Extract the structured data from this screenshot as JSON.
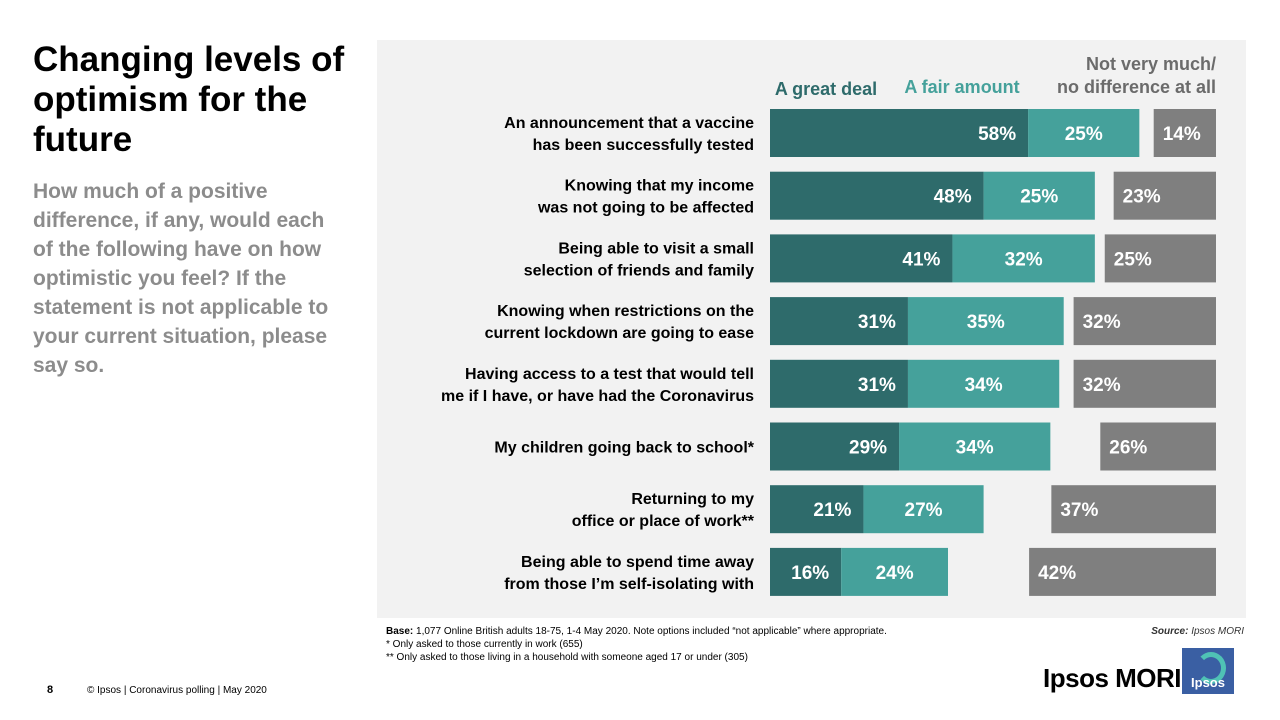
{
  "slide": {
    "title": "Changing levels of optimism for the future",
    "question": "How much of a positive difference, if any, would each of the following have on how optimistic you feel? If the statement is not applicable to your current situation, please say so.",
    "base_label": "Base:",
    "base_text": "1,077 Online British adults 18-75, 1-4 May 2020. Note options included “not applicable” where appropriate.",
    "note1": "* Only asked to those currently in work (655)",
    "note2": "** Only asked to those living in a household with someone aged 17 or under (305)",
    "source_label": "Source:",
    "source_text": "Ipsos MORI",
    "page_number": "8",
    "footer": "© Ipsos | Coronavirus polling | May 2020",
    "logo_text": "Ipsos MORI",
    "logo_badge": "Ipsos"
  },
  "chart_data": {
    "type": "bar",
    "orientation": "horizontal",
    "stacked": true,
    "value_suffix": "%",
    "categories": [
      [
        "An announcement that a vaccine",
        "has been successfully tested"
      ],
      [
        "Knowing that my income",
        "was not going to be affected"
      ],
      [
        "Being able to visit a small",
        "selection of friends and family"
      ],
      [
        "Knowing when restrictions on the",
        "current lockdown are going to ease"
      ],
      [
        "Having access to a test that would tell",
        "me if I have, or have had the Coronavirus"
      ],
      [
        "My children going back to school*"
      ],
      [
        "Returning to my",
        "office or place of work**"
      ],
      [
        "Being able to spend time away",
        "from those I’m self-isolating with"
      ]
    ],
    "series": [
      {
        "name": "A great deal",
        "color": "#2e6b6b",
        "values": [
          58,
          48,
          41,
          31,
          31,
          29,
          21,
          16
        ]
      },
      {
        "name": "A fair amount",
        "color": "#45a19b",
        "values": [
          25,
          25,
          32,
          35,
          34,
          34,
          27,
          24
        ]
      },
      {
        "name": "Not very much/ no difference at all",
        "legend_lines": [
          "Not very much/",
          "no difference at all"
        ],
        "color": "#7f7f7f",
        "values": [
          14,
          23,
          25,
          32,
          32,
          26,
          37,
          42
        ],
        "placement": "right-aligned"
      }
    ],
    "xlim": [
      0,
      100
    ],
    "legend": "top"
  }
}
